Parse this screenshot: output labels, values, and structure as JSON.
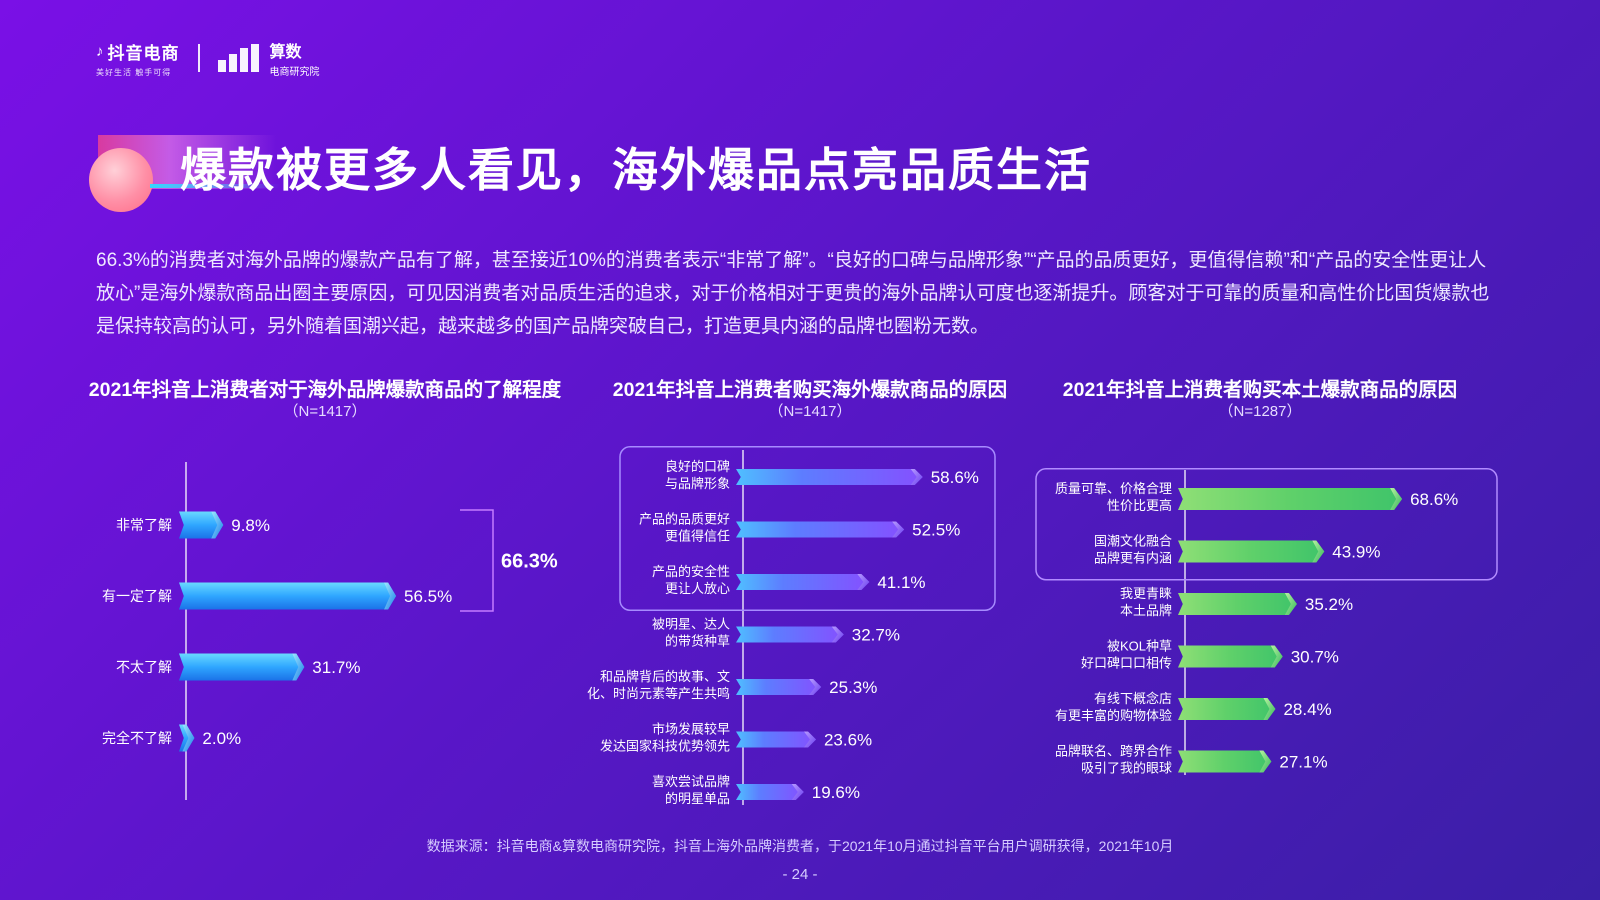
{
  "logos": {
    "douyin_name": "抖音电商",
    "douyin_slogan": "美好生活 触手可得",
    "suanshu_name": "算数",
    "suanshu_sub": "电商研究院"
  },
  "page_title": "爆款被更多人看见，海外爆品点亮品质生活",
  "intro_text": "66.3%的消费者对海外品牌的爆款产品有了解，甚至接近10%的消费者表示“非常了解”。“良好的口碑与品牌形象”“产品的品质更好，更值得信赖”和“产品的安全性更让人放心”是海外爆款商品出圈主要原因，可见因消费者对品质生活的追求，对于价格相对于更贵的海外品牌认可度也逐渐提升。顾客对于可靠的质量和高性价比国货爆款也是保持较高的认可，另外随着国潮兴起，越来越多的国产品牌突破自己，打造更具内涵的品牌也圈粉无数。",
  "colors": {
    "bar_blue": "#1f8dfa",
    "bar_purple": "#7b55ff",
    "bar_green": "#5fd06a",
    "highlight_border": "#c47cff"
  },
  "chart_data": [
    {
      "type": "bar",
      "orientation": "horizontal",
      "title": "2021年抖音上消费者对于海外品牌爆款商品的了解程度",
      "subtitle": "（N=1417）",
      "categories": [
        "非常了解",
        "有一定了解",
        "不太了解",
        "完全不了解"
      ],
      "values": [
        9.8,
        56.5,
        31.7,
        2.0
      ],
      "value_labels": [
        "9.8%",
        "56.5%",
        "31.7%",
        "2.0%"
      ],
      "bracket": {
        "covers": [
          "非常了解",
          "有一定了解"
        ],
        "label": "66.3%"
      }
    },
    {
      "type": "bar",
      "orientation": "horizontal",
      "title": "2021年抖音上消费者购买海外爆款商品的原因",
      "subtitle": "（N=1417）",
      "categories": [
        [
          "良好的口碑",
          "与品牌形象"
        ],
        [
          "产品的品质更好",
          "更值得信任"
        ],
        [
          "产品的安全性",
          "更让人放心"
        ],
        [
          "被明星、达人",
          "的带货种草"
        ],
        [
          "和品牌背后的故事、文",
          "化、时尚元素等产生共鸣"
        ],
        [
          "市场发展较早",
          "发达国家科技优势领先"
        ],
        [
          "喜欢尝试品牌",
          "的明星单品"
        ]
      ],
      "values": [
        58.6,
        52.5,
        41.1,
        32.7,
        25.3,
        23.6,
        19.6
      ],
      "value_labels": [
        "58.6%",
        "52.5%",
        "41.1%",
        "32.7%",
        "25.3%",
        "23.6%",
        "19.6%"
      ],
      "highlighted_top": 3
    },
    {
      "type": "bar",
      "orientation": "horizontal",
      "title": "2021年抖音上消费者购买本土爆款商品的原因",
      "subtitle": "（N=1287）",
      "categories": [
        [
          "质量可靠、价格合理",
          "性价比更高"
        ],
        [
          "国潮文化融合",
          "品牌更有内涵"
        ],
        [
          "我更青睐",
          "本土品牌"
        ],
        [
          "被KOL种草",
          "好口碑口口相传"
        ],
        [
          "有线下概念店",
          "有更丰富的购物体验"
        ],
        [
          "品牌联名、跨界合作",
          "吸引了我的眼球"
        ]
      ],
      "values": [
        68.6,
        43.9,
        35.2,
        30.7,
        28.4,
        27.1
      ],
      "value_labels": [
        "68.6%",
        "43.9%",
        "35.2%",
        "30.7%",
        "28.4%",
        "27.1%"
      ],
      "highlighted_top": 2
    }
  ],
  "source": "数据来源：抖音电商&算数电商研究院，抖音上海外品牌消费者，于2021年10月通过抖音平台用户调研获得，2021年10月",
  "page_number": "- 24 -"
}
